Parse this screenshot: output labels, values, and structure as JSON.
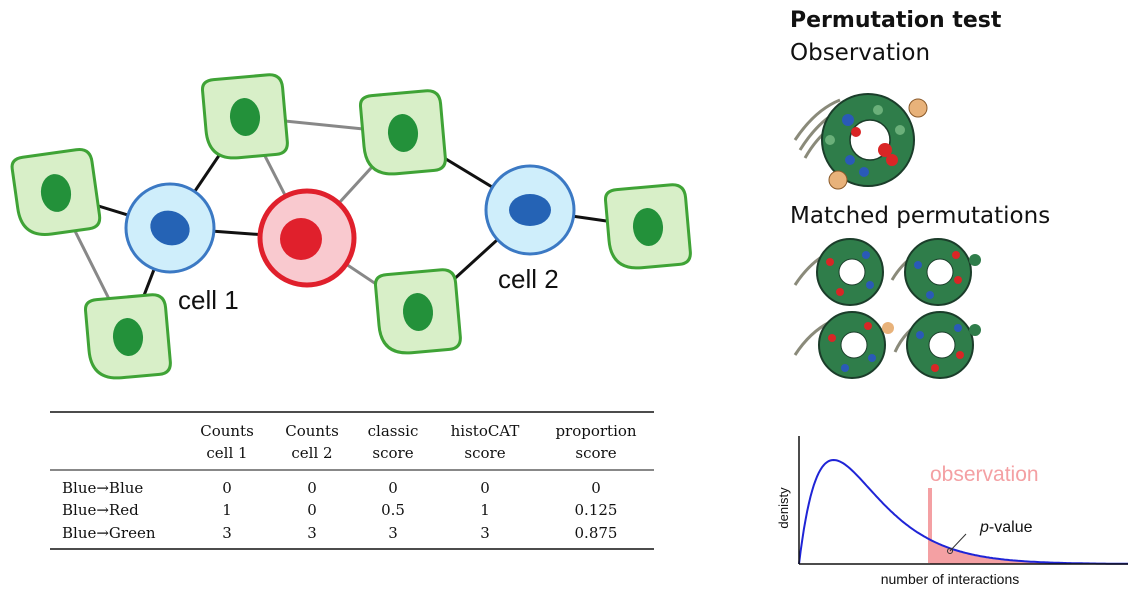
{
  "network": {
    "labels": {
      "cell1": "cell 1",
      "cell2": "cell 2"
    },
    "colors": {
      "blue_fill": "#cfeefb",
      "blue_stroke": "#3b79c4",
      "blue_nucleus": "#2563b5",
      "red_fill": "#f9c9cf",
      "red_stroke": "#e0202c",
      "red_nucleus": "#e0202c",
      "green_fill": "#d8efc8",
      "green_stroke": "#3fa336",
      "green_nucleus": "#23913a"
    }
  },
  "table": {
    "headers": [
      [
        "Counts",
        "cell 1"
      ],
      [
        "Counts",
        "cell 2"
      ],
      [
        "classic",
        "score"
      ],
      [
        "histoCAT",
        "score"
      ],
      [
        "proportion",
        "score"
      ]
    ],
    "rows": [
      {
        "label": "Blue→Blue",
        "values": [
          "0",
          "0",
          "0",
          "0",
          "0"
        ]
      },
      {
        "label": "Blue→Red",
        "values": [
          "1",
          "0",
          "0.5",
          "1",
          "0.125"
        ]
      },
      {
        "label": "Blue→Green",
        "values": [
          "3",
          "3",
          "3",
          "3",
          "0.875"
        ]
      }
    ]
  },
  "permutation": {
    "title": "Permutation test",
    "observation_label": "Observation",
    "matched_label": "Matched permutations"
  },
  "density_plot": {
    "ylabel": "denisty",
    "xlabel": "number of interactions",
    "observation_label": "observation",
    "pvalue_italic": "p",
    "pvalue_rest": "-value",
    "colors": {
      "curve": "#1f24d6",
      "observation": "#f4a0a3"
    }
  }
}
